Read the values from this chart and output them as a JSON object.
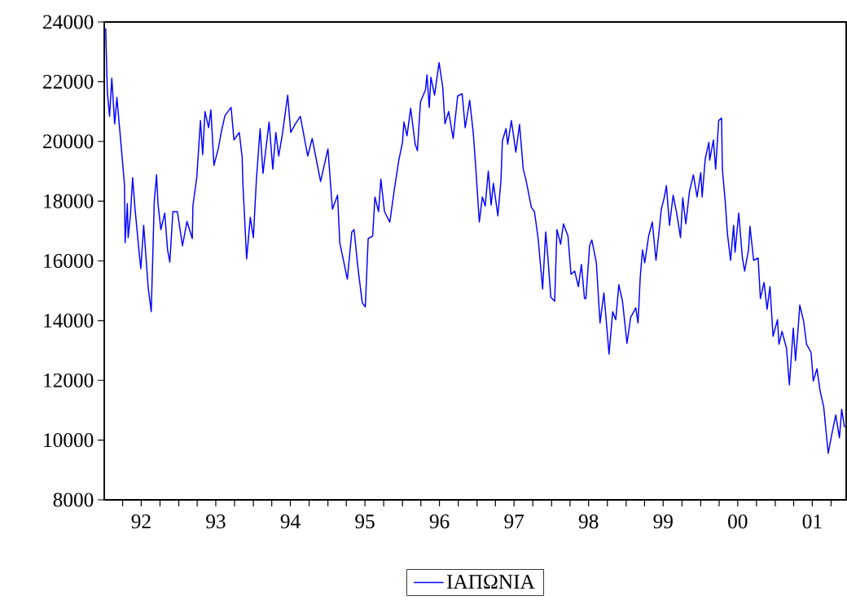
{
  "chart_data": {
    "type": "line",
    "series": [
      {
        "name": "ΙΑΠΩΝΙΑ",
        "color": "#0000ff",
        "x": [
          "1992-01-08",
          "1992-01-16",
          "1992-01-27",
          "1992-02-07",
          "1992-02-21",
          "1992-03-04",
          "1992-03-26",
          "1992-04-10",
          "1992-04-13",
          "1992-04-24",
          "1992-04-28",
          "1992-05-09",
          "1992-05-20",
          "1992-05-31",
          "1992-06-22",
          "1992-06-29",
          "1992-07-13",
          "1992-08-04",
          "1992-08-19",
          "1992-09-03",
          "1992-09-14",
          "1992-09-21",
          "1992-10-05",
          "1992-10-24",
          "1992-11-07",
          "1992-11-18",
          "1992-12-03",
          "1992-12-25",
          "1993-01-19",
          "1993-02-10",
          "1993-03-08",
          "1993-03-11",
          "1993-03-30",
          "1993-04-17",
          "1993-04-28",
          "1993-05-09",
          "1993-05-27",
          "1993-06-07",
          "1993-06-22",
          "1993-07-13",
          "1993-07-28",
          "1993-08-15",
          "1993-09-14",
          "1993-09-28",
          "1993-10-24",
          "1993-11-07",
          "1993-11-11",
          "1993-11-29",
          "1993-12-17",
          "1994-01-01",
          "1994-01-16",
          "1994-02-03",
          "1994-02-17",
          "1994-03-19",
          "1994-04-06",
          "1994-04-21",
          "1994-05-05",
          "1994-05-23",
          "1994-06-07",
          "1994-06-18",
          "1994-07-03",
          "1994-07-24",
          "1994-08-19",
          "1994-09-24",
          "1994-10-16",
          "1994-11-26",
          "1995-01-01",
          "1995-01-23",
          "1995-02-17",
          "1995-02-28",
          "1995-04-06",
          "1995-04-28",
          "1995-05-09",
          "1995-05-27",
          "1995-06-18",
          "1995-07-03",
          "1995-07-17",
          "1995-08-08",
          "1995-08-19",
          "1995-09-06",
          "1995-09-17",
          "1995-10-05",
          "1995-10-31",
          "1995-11-22",
          "1995-12-14",
          "1996-01-01",
          "1996-01-08",
          "1996-01-23",
          "1996-02-10",
          "1996-03-04",
          "1996-03-15",
          "1996-03-30",
          "1996-04-24",
          "1996-05-01",
          "1996-05-12",
          "1996-05-20",
          "1996-06-07",
          "1996-06-29",
          "1996-07-17",
          "1996-07-28",
          "1996-08-15",
          "1996-09-06",
          "1996-09-28",
          "1996-10-20",
          "1996-11-04",
          "1996-11-26",
          "1996-12-14",
          "1996-12-25",
          "1997-01-12",
          "1997-01-27",
          "1997-02-10",
          "1997-02-25",
          "1997-03-11",
          "1997-03-22",
          "1997-04-13",
          "1997-04-28",
          "1997-05-05",
          "1997-05-23",
          "1997-05-31",
          "1997-06-18",
          "1997-07-10",
          "1997-07-28",
          "1997-08-15",
          "1997-08-30",
          "1997-09-24",
          "1997-10-09",
          "1997-10-27",
          "1997-11-18",
          "1997-12-03",
          "1997-12-14",
          "1997-12-28",
          "1998-01-16",
          "1998-01-27",
          "1998-02-14",
          "1998-02-28",
          "1998-03-22",
          "1998-04-06",
          "1998-04-24",
          "1998-05-12",
          "1998-05-27",
          "1998-06-11",
          "1998-06-18",
          "1998-07-06",
          "1998-07-17",
          "1998-08-08",
          "1998-08-26",
          "1998-09-14",
          "1998-10-02",
          "1998-10-09",
          "1998-10-27",
          "1998-11-11",
          "1998-11-26",
          "1998-12-14",
          "1999-01-05",
          "1999-01-23",
          "1999-02-17",
          "1999-02-28",
          "1999-03-11",
          "1999-03-22",
          "1999-04-02",
          "1999-04-21",
          "1999-05-09",
          "1999-05-20",
          "1999-05-27",
          "1999-06-14",
          "1999-06-22",
          "1999-07-06",
          "1999-07-17",
          "1999-08-01",
          "1999-08-19",
          "1999-09-06",
          "1999-09-24",
          "1999-10-05",
          "1999-10-20",
          "1999-11-07",
          "1999-11-26",
          "1999-12-14",
          "2000-01-01",
          "2000-01-08",
          "2000-01-23",
          "2000-02-10",
          "2000-02-14",
          "2000-03-04",
          "2000-03-15",
          "2000-03-30",
          "2000-04-13",
          "2000-04-17",
          "2000-05-01",
          "2000-05-12",
          "2000-05-27",
          "2000-06-11",
          "2000-06-18",
          "2000-07-06",
          "2000-07-24",
          "2000-08-04",
          "2000-08-23",
          "2000-08-30",
          "2000-09-17",
          "2000-10-09",
          "2000-10-20",
          "2000-11-07",
          "2000-11-22",
          "2000-12-06",
          "2000-12-21",
          "2001-01-12",
          "2001-01-19",
          "2001-02-03",
          "2001-02-25",
          "2001-03-11",
          "2001-03-30",
          "2001-04-10",
          "2001-04-24",
          "2001-05-01",
          "2001-05-20",
          "2001-06-03",
          "2001-06-25",
          "2001-07-06",
          "2001-07-24",
          "2001-08-08",
          "2001-08-26",
          "2001-09-17",
          "2001-10-05",
          "2001-10-24",
          "2001-11-11",
          "2001-11-22",
          "2001-12-06"
        ],
        "values": [
          23780,
          21680,
          20840,
          22120,
          20590,
          21470,
          19750,
          18550,
          16610,
          17920,
          16780,
          17510,
          18790,
          17790,
          16200,
          15740,
          17190,
          15120,
          14300,
          18000,
          18880,
          17920,
          17050,
          17600,
          16370,
          15960,
          17650,
          17650,
          16510,
          17320,
          16750,
          17840,
          18800,
          20700,
          19560,
          21000,
          20460,
          21060,
          19200,
          19750,
          20320,
          20870,
          21140,
          20050,
          20300,
          19480,
          18550,
          16070,
          17460,
          16780,
          18740,
          20430,
          18930,
          20650,
          19070,
          20300,
          19510,
          20240,
          21000,
          21550,
          20300,
          20570,
          20840,
          19510,
          20100,
          18660,
          19750,
          17730,
          18200,
          16610,
          15390,
          16970,
          17050,
          15820,
          14600,
          14460,
          16750,
          16830,
          18140,
          17650,
          18740,
          17650,
          17300,
          18390,
          19370,
          19970,
          20650,
          20190,
          21110,
          19910,
          19690,
          21320,
          21740,
          22230,
          21140,
          22150,
          21550,
          22640,
          21820,
          20590,
          21000,
          20100,
          21520,
          21600,
          20460,
          21380,
          20240,
          19200,
          17300,
          18140,
          17840,
          19010,
          17870,
          18600,
          17510,
          18690,
          20020,
          20430,
          19910,
          20700,
          19640,
          20570,
          19090,
          18660,
          17790,
          17650,
          16750,
          15060,
          16970,
          16100,
          14790,
          14650,
          17050,
          16560,
          17240,
          16830,
          15550,
          15660,
          15140,
          15880,
          14740,
          14740,
          16510,
          16700,
          15940,
          13920,
          14930,
          13480,
          12880,
          14300,
          14030,
          15200,
          14650,
          13240,
          14110,
          14430,
          13920,
          15470,
          16370,
          15940,
          16830,
          17300,
          16510,
          16020,
          17190,
          17730,
          18110,
          18520,
          17190,
          18200,
          17570,
          16780,
          18110,
          17240,
          18330,
          18880,
          18140,
          18960,
          18140,
          19420,
          19970,
          19370,
          20050,
          19070,
          20700,
          20780,
          19070,
          17980,
          16890,
          16020,
          17190,
          16290,
          17600,
          16100,
          15660,
          16370,
          17160,
          16020,
          16100,
          14740,
          15280,
          14380,
          15140,
          13480,
          14030,
          13210,
          13640,
          13070,
          11850,
          13750,
          12660,
          13840,
          14520,
          13970,
          13210,
          12940,
          11980,
          12390,
          11660,
          11110,
          9560,
          10210,
          10840,
          10080,
          11030,
          10430
        ]
      }
    ],
    "xlim": [
      "1992-01-01",
      "2001-12-14"
    ],
    "xticks": [
      {
        "value": "1992-04-01",
        "label": null
      },
      {
        "value": "1992-07-01",
        "label": "92"
      },
      {
        "value": "1992-10-01",
        "label": null
      },
      {
        "value": "1993-01-01",
        "label": null
      },
      {
        "value": "1993-04-01",
        "label": null
      },
      {
        "value": "1993-07-01",
        "label": "93"
      },
      {
        "value": "1993-10-01",
        "label": null
      },
      {
        "value": "1994-01-01",
        "label": null
      },
      {
        "value": "1994-04-01",
        "label": null
      },
      {
        "value": "1994-07-01",
        "label": "94"
      },
      {
        "value": "1994-10-01",
        "label": null
      },
      {
        "value": "1995-01-01",
        "label": null
      },
      {
        "value": "1995-04-01",
        "label": null
      },
      {
        "value": "1995-07-01",
        "label": "95"
      },
      {
        "value": "1995-10-01",
        "label": null
      },
      {
        "value": "1996-01-01",
        "label": null
      },
      {
        "value": "1996-04-01",
        "label": null
      },
      {
        "value": "1996-07-01",
        "label": "96"
      },
      {
        "value": "1996-10-01",
        "label": null
      },
      {
        "value": "1997-01-01",
        "label": null
      },
      {
        "value": "1997-04-01",
        "label": null
      },
      {
        "value": "1997-07-01",
        "label": "97"
      },
      {
        "value": "1997-10-01",
        "label": null
      },
      {
        "value": "1998-01-01",
        "label": null
      },
      {
        "value": "1998-04-01",
        "label": null
      },
      {
        "value": "1998-07-01",
        "label": "98"
      },
      {
        "value": "1998-10-01",
        "label": null
      },
      {
        "value": "1999-01-01",
        "label": null
      },
      {
        "value": "1999-04-01",
        "label": null
      },
      {
        "value": "1999-07-01",
        "label": "99"
      },
      {
        "value": "1999-10-01",
        "label": null
      },
      {
        "value": "2000-01-01",
        "label": null
      },
      {
        "value": "2000-04-01",
        "label": null
      },
      {
        "value": "2000-07-01",
        "label": "00"
      },
      {
        "value": "2000-10-01",
        "label": null
      },
      {
        "value": "2001-01-01",
        "label": null
      },
      {
        "value": "2001-04-01",
        "label": null
      },
      {
        "value": "2001-07-01",
        "label": "01"
      },
      {
        "value": "2001-10-01",
        "label": null
      }
    ],
    "ylim": [
      8000,
      24000
    ],
    "yticks": [
      8000,
      10000,
      12000,
      14000,
      16000,
      18000,
      20000,
      22000,
      24000
    ],
    "legend": "bottom",
    "line_style": "solid",
    "marker": "none"
  }
}
